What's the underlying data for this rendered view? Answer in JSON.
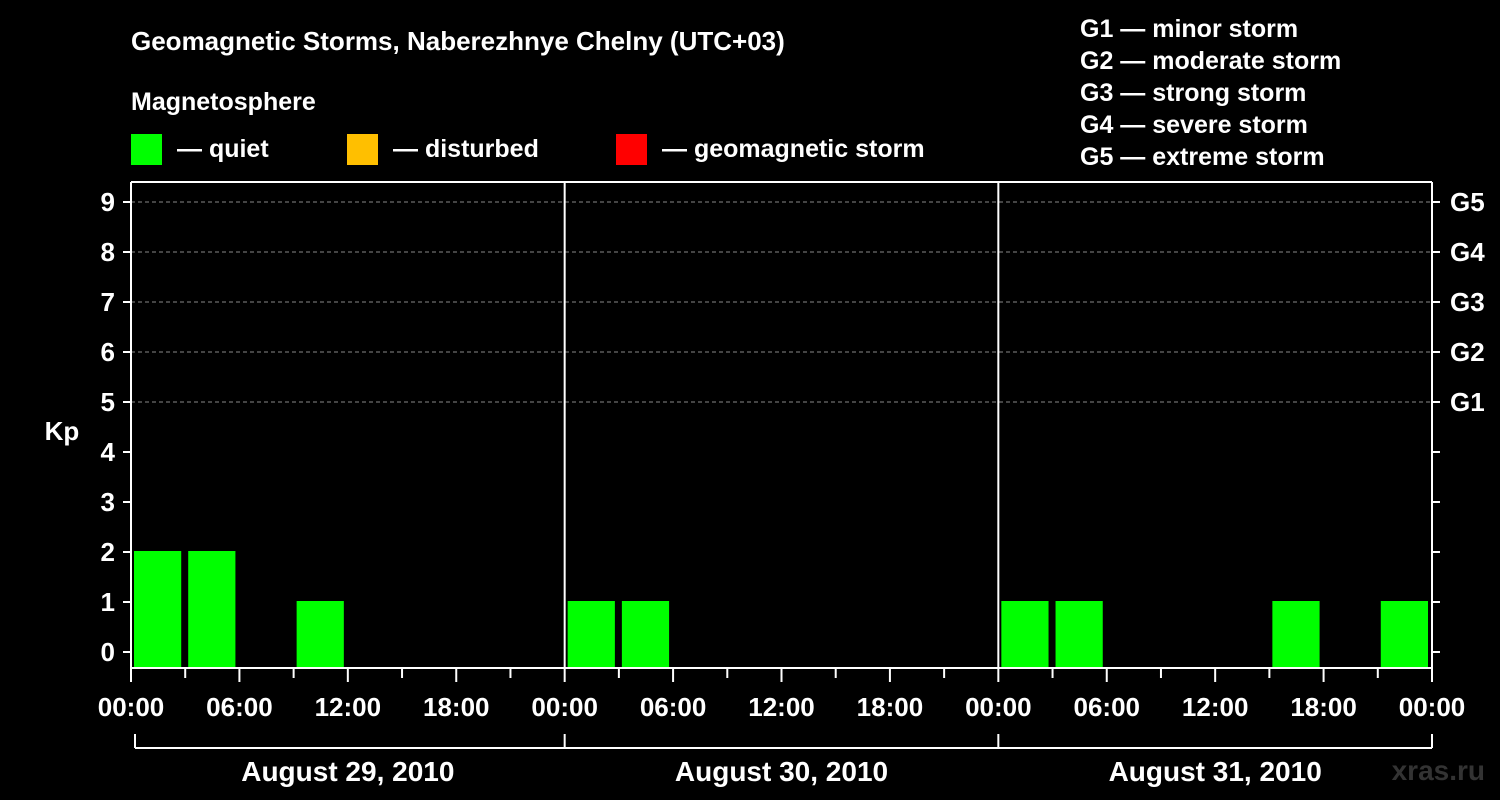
{
  "chart_data": {
    "type": "bar",
    "title": "Geomagnetic Storms, Naberezhnye Chelny (UTC+03)",
    "ylabel": "Kp",
    "ylim": [
      0,
      9
    ],
    "yticks": [
      "0",
      "1",
      "2",
      "3",
      "4",
      "5",
      "6",
      "7",
      "8",
      "9"
    ],
    "right_ticks": [
      {
        "kp": 5,
        "label": "G1"
      },
      {
        "kp": 6,
        "label": "G2"
      },
      {
        "kp": 7,
        "label": "G3"
      },
      {
        "kp": 8,
        "label": "G4"
      },
      {
        "kp": 9,
        "label": "G5"
      }
    ],
    "legend": {
      "heading": "Magnetosphere",
      "items": [
        {
          "label": "— quiet",
          "color": "#00ff00"
        },
        {
          "label": "— disturbed",
          "color": "#ffbf00"
        },
        {
          "label": "— geomagnetic storm",
          "color": "#ff0000"
        }
      ]
    },
    "storm_scale": [
      "G1 — minor storm",
      "G2 — moderate storm",
      "G3 — strong storm",
      "G4 — severe storm",
      "G5 — extreme storm"
    ],
    "x_tick_labels": [
      "00:00",
      "06:00",
      "12:00",
      "18:00",
      "00:00",
      "06:00",
      "12:00",
      "18:00",
      "00:00",
      "06:00",
      "12:00",
      "18:00",
      "00:00"
    ],
    "days": [
      "August 29, 2010",
      "August 30, 2010",
      "August 31, 2010"
    ],
    "series": [
      {
        "name": "Kp",
        "interval_hours": 3,
        "values": [
          2,
          2,
          0,
          1,
          0,
          0,
          0,
          0,
          1,
          1,
          0,
          0,
          0,
          0,
          0,
          0,
          1,
          1,
          0,
          0,
          0,
          1,
          0,
          1
        ]
      }
    ],
    "bar_color": "#00ff00",
    "watermark": "xras.ru"
  }
}
